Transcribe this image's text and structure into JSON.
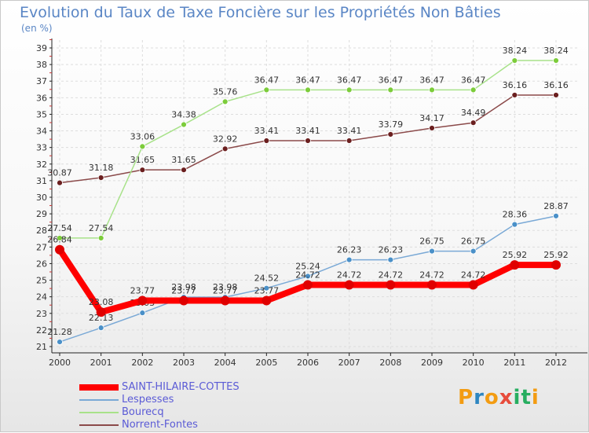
{
  "title": "Evolution du Taux de Taxe Foncière sur les Propriétés Non Bâties",
  "unit": "(en %)",
  "logo": {
    "letters": [
      "P",
      "r",
      "o",
      "x",
      "i",
      "t",
      "i"
    ],
    "colors": [
      "#f39c12",
      "#2e86c1",
      "#f39c12",
      "#e74c3c",
      "#27ae60",
      "#27ae60",
      "#f39c12"
    ]
  },
  "chart_data": {
    "type": "line",
    "x": [
      "2000",
      "2001",
      "2002",
      "2003",
      "2004",
      "2005",
      "2006",
      "2007",
      "2008",
      "2009",
      "2010",
      "2011",
      "2012"
    ],
    "ylim": [
      21,
      39
    ],
    "yticks": [
      21,
      22,
      23,
      24,
      25,
      26,
      27,
      28,
      29,
      30,
      31,
      32,
      33,
      34,
      35,
      36,
      37,
      38,
      39
    ],
    "grid": true,
    "legend_position": "bottom-left",
    "series": [
      {
        "name": "SAINT-HILAIRE-COTTES",
        "color": "#ff0000",
        "width": 8,
        "marker": 6,
        "values": [
          26.84,
          23.08,
          23.77,
          23.77,
          23.77,
          23.77,
          24.72,
          24.72,
          24.72,
          24.72,
          24.72,
          25.92,
          25.92
        ],
        "labels": [
          "26.84",
          "23.08",
          "23.77",
          "23.77",
          "23.77",
          "23.77",
          "24.72",
          "24.72",
          "24.72",
          "24.72",
          "24.72",
          "25.92",
          "25.92"
        ]
      },
      {
        "name": "Lespesses",
        "color": "#7aa9d6",
        "width": 1.5,
        "marker": 3.5,
        "dot": "#4a90c8",
        "values": [
          21.28,
          22.13,
          23.03,
          23.98,
          23.98,
          24.52,
          25.24,
          26.23,
          26.23,
          26.75,
          26.75,
          28.36,
          28.87
        ],
        "labels": [
          "21.28",
          "22.13",
          "23.03",
          "23.98",
          "23.98",
          "24.52",
          "25.24",
          "26.23",
          "26.23",
          "26.75",
          "26.75",
          "28.36",
          "28.87"
        ]
      },
      {
        "name": "Bourecq",
        "color": "#a8e28a",
        "width": 1.5,
        "marker": 3.5,
        "dot": "#7ccc3a",
        "values": [
          27.54,
          27.54,
          33.06,
          34.38,
          35.76,
          36.47,
          36.47,
          36.47,
          36.47,
          36.47,
          36.47,
          38.24,
          38.24
        ],
        "labels": [
          "27.54",
          "27.54",
          "33.06",
          "34.38",
          "35.76",
          "36.47",
          "36.47",
          "36.47",
          "36.47",
          "36.47",
          "36.47",
          "38.24",
          "38.24"
        ]
      },
      {
        "name": "Norrent-Fontes",
        "color": "#8b4a4a",
        "width": 1.5,
        "marker": 3.5,
        "dot": "#6b1f1f",
        "values": [
          30.87,
          31.18,
          31.65,
          31.65,
          32.92,
          33.41,
          33.41,
          33.41,
          33.79,
          34.17,
          34.49,
          36.16,
          36.16
        ],
        "labels": [
          "30.87",
          "31.18",
          "31.65",
          "31.65",
          "32.92",
          "33.41",
          "33.41",
          "33.41",
          "33.79",
          "34.17",
          "34.49",
          "36.16",
          "36.16"
        ]
      }
    ]
  }
}
